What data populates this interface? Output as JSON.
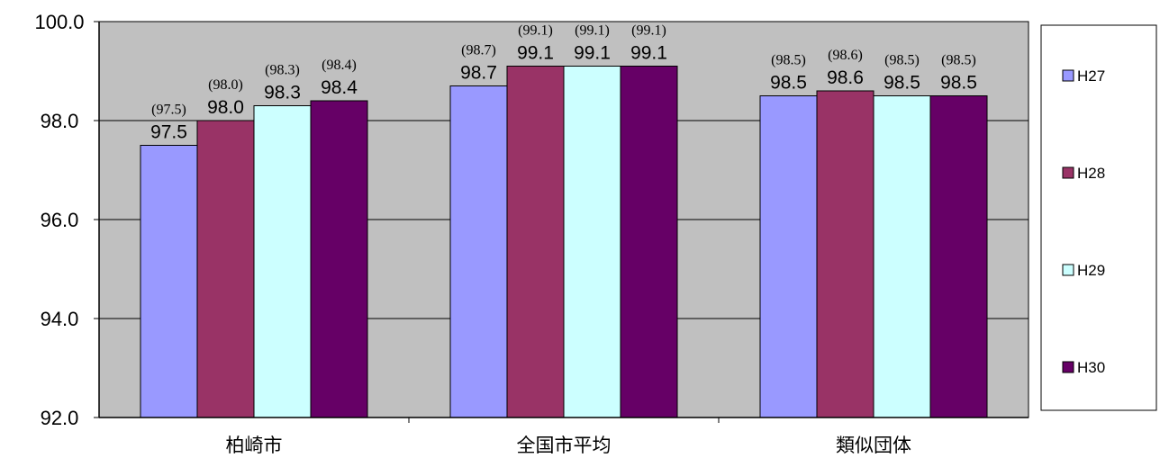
{
  "chart_data": {
    "type": "bar",
    "categories": [
      "柏崎市",
      "全国市平均",
      "類似団体"
    ],
    "series": [
      {
        "name": "H27",
        "values": [
          97.5,
          98.7,
          98.5
        ],
        "prev_labels": [
          "(97.5)",
          "(98.7)",
          "(98.5)"
        ],
        "color": "#9999ff"
      },
      {
        "name": "H28",
        "values": [
          98.0,
          99.1,
          98.6
        ],
        "prev_labels": [
          "(98.0)",
          "(99.1)",
          "(98.6)"
        ],
        "color": "#993366"
      },
      {
        "name": "H29",
        "values": [
          98.3,
          99.1,
          98.5
        ],
        "prev_labels": [
          "(98.3)",
          "(99.1)",
          "(98.5)"
        ],
        "color": "#ccffff"
      },
      {
        "name": "H30",
        "values": [
          98.4,
          99.1,
          98.5
        ],
        "prev_labels": [
          "(98.4)",
          "(99.1)",
          "(98.5)"
        ],
        "color": "#660066"
      }
    ],
    "ylim": [
      92.0,
      100.0
    ],
    "yticks": [
      "92.0",
      "94.0",
      "96.0",
      "98.0",
      "100.0"
    ],
    "grid": true,
    "plot_background": "#c0c0c0",
    "legend_position": "right"
  }
}
